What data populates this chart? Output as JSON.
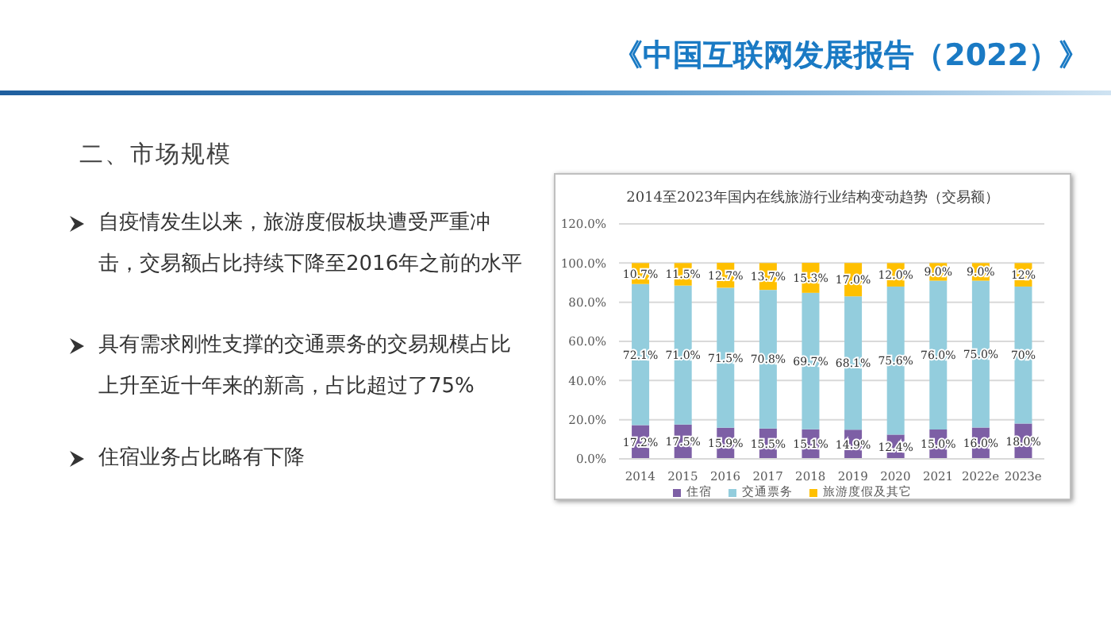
{
  "chart_data": {
    "type": "bar",
    "stacked": true,
    "title": "2014至2023年国内在线旅游行业结构变动趋势（交易额）",
    "annotations": [
      "《中国互联网发展报告（2022）》",
      "二、市场规模",
      "自疫情发生以来，旅游度假板块遭受严重冲击，交易额占比持续下降至2016年之前的水平",
      "具有需求刚性支撑的交通票务的交易规模占比上升至近十年来的新高，占比超过了75%",
      "住宿业务占比略有下降"
    ],
    "categories": [
      "2014",
      "2015",
      "2016",
      "2017",
      "2018",
      "2019",
      "2020",
      "2021",
      "2022e",
      "2023e"
    ],
    "series": [
      {
        "name": "住宿",
        "color": "#7d5fa5",
        "values": [
          17.2,
          17.5,
          15.9,
          15.5,
          15.1,
          14.9,
          12.4,
          15.0,
          16.0,
          18.0
        ],
        "value_labels": [
          "17.2%",
          "17.5%",
          "15.9%",
          "15.5%",
          "15.1%",
          "14.9%",
          "12.4%",
          "15.0%",
          "16.0%",
          "18.0%"
        ]
      },
      {
        "name": "交通票务",
        "color": "#93cddd",
        "values": [
          72.1,
          71.0,
          71.5,
          70.8,
          69.7,
          68.1,
          75.6,
          76.0,
          75.0,
          70
        ],
        "value_labels": [
          "72.1%",
          "71.0%",
          "71.5%",
          "70.8%",
          "69.7%",
          "68.1%",
          "75.6%",
          "76.0%",
          "75.0%",
          "70%"
        ]
      },
      {
        "name": "旅游度假及其它",
        "color": "#ffc000",
        "values": [
          10.7,
          11.5,
          12.7,
          13.7,
          15.3,
          17.0,
          12.0,
          9.0,
          9.0,
          12
        ],
        "value_labels": [
          "10.7%",
          "11.5%",
          "12.7%",
          "13.7%",
          "15.3%",
          "17.0%",
          "12.0%",
          "9.0%",
          "9.0%",
          "12%"
        ]
      }
    ],
    "ylim": [
      0,
      120
    ],
    "yticks": [
      {
        "value": 0,
        "label": "0.0%"
      },
      {
        "value": 20,
        "label": "20.0%"
      },
      {
        "value": 40,
        "label": "40.0%"
      },
      {
        "value": 60,
        "label": "60.0%"
      },
      {
        "value": 80,
        "label": "80.0%"
      },
      {
        "value": 100,
        "label": "100.0%"
      },
      {
        "value": 120,
        "label": "120.0%"
      }
    ],
    "grid": "y",
    "legend": "bottom"
  }
}
